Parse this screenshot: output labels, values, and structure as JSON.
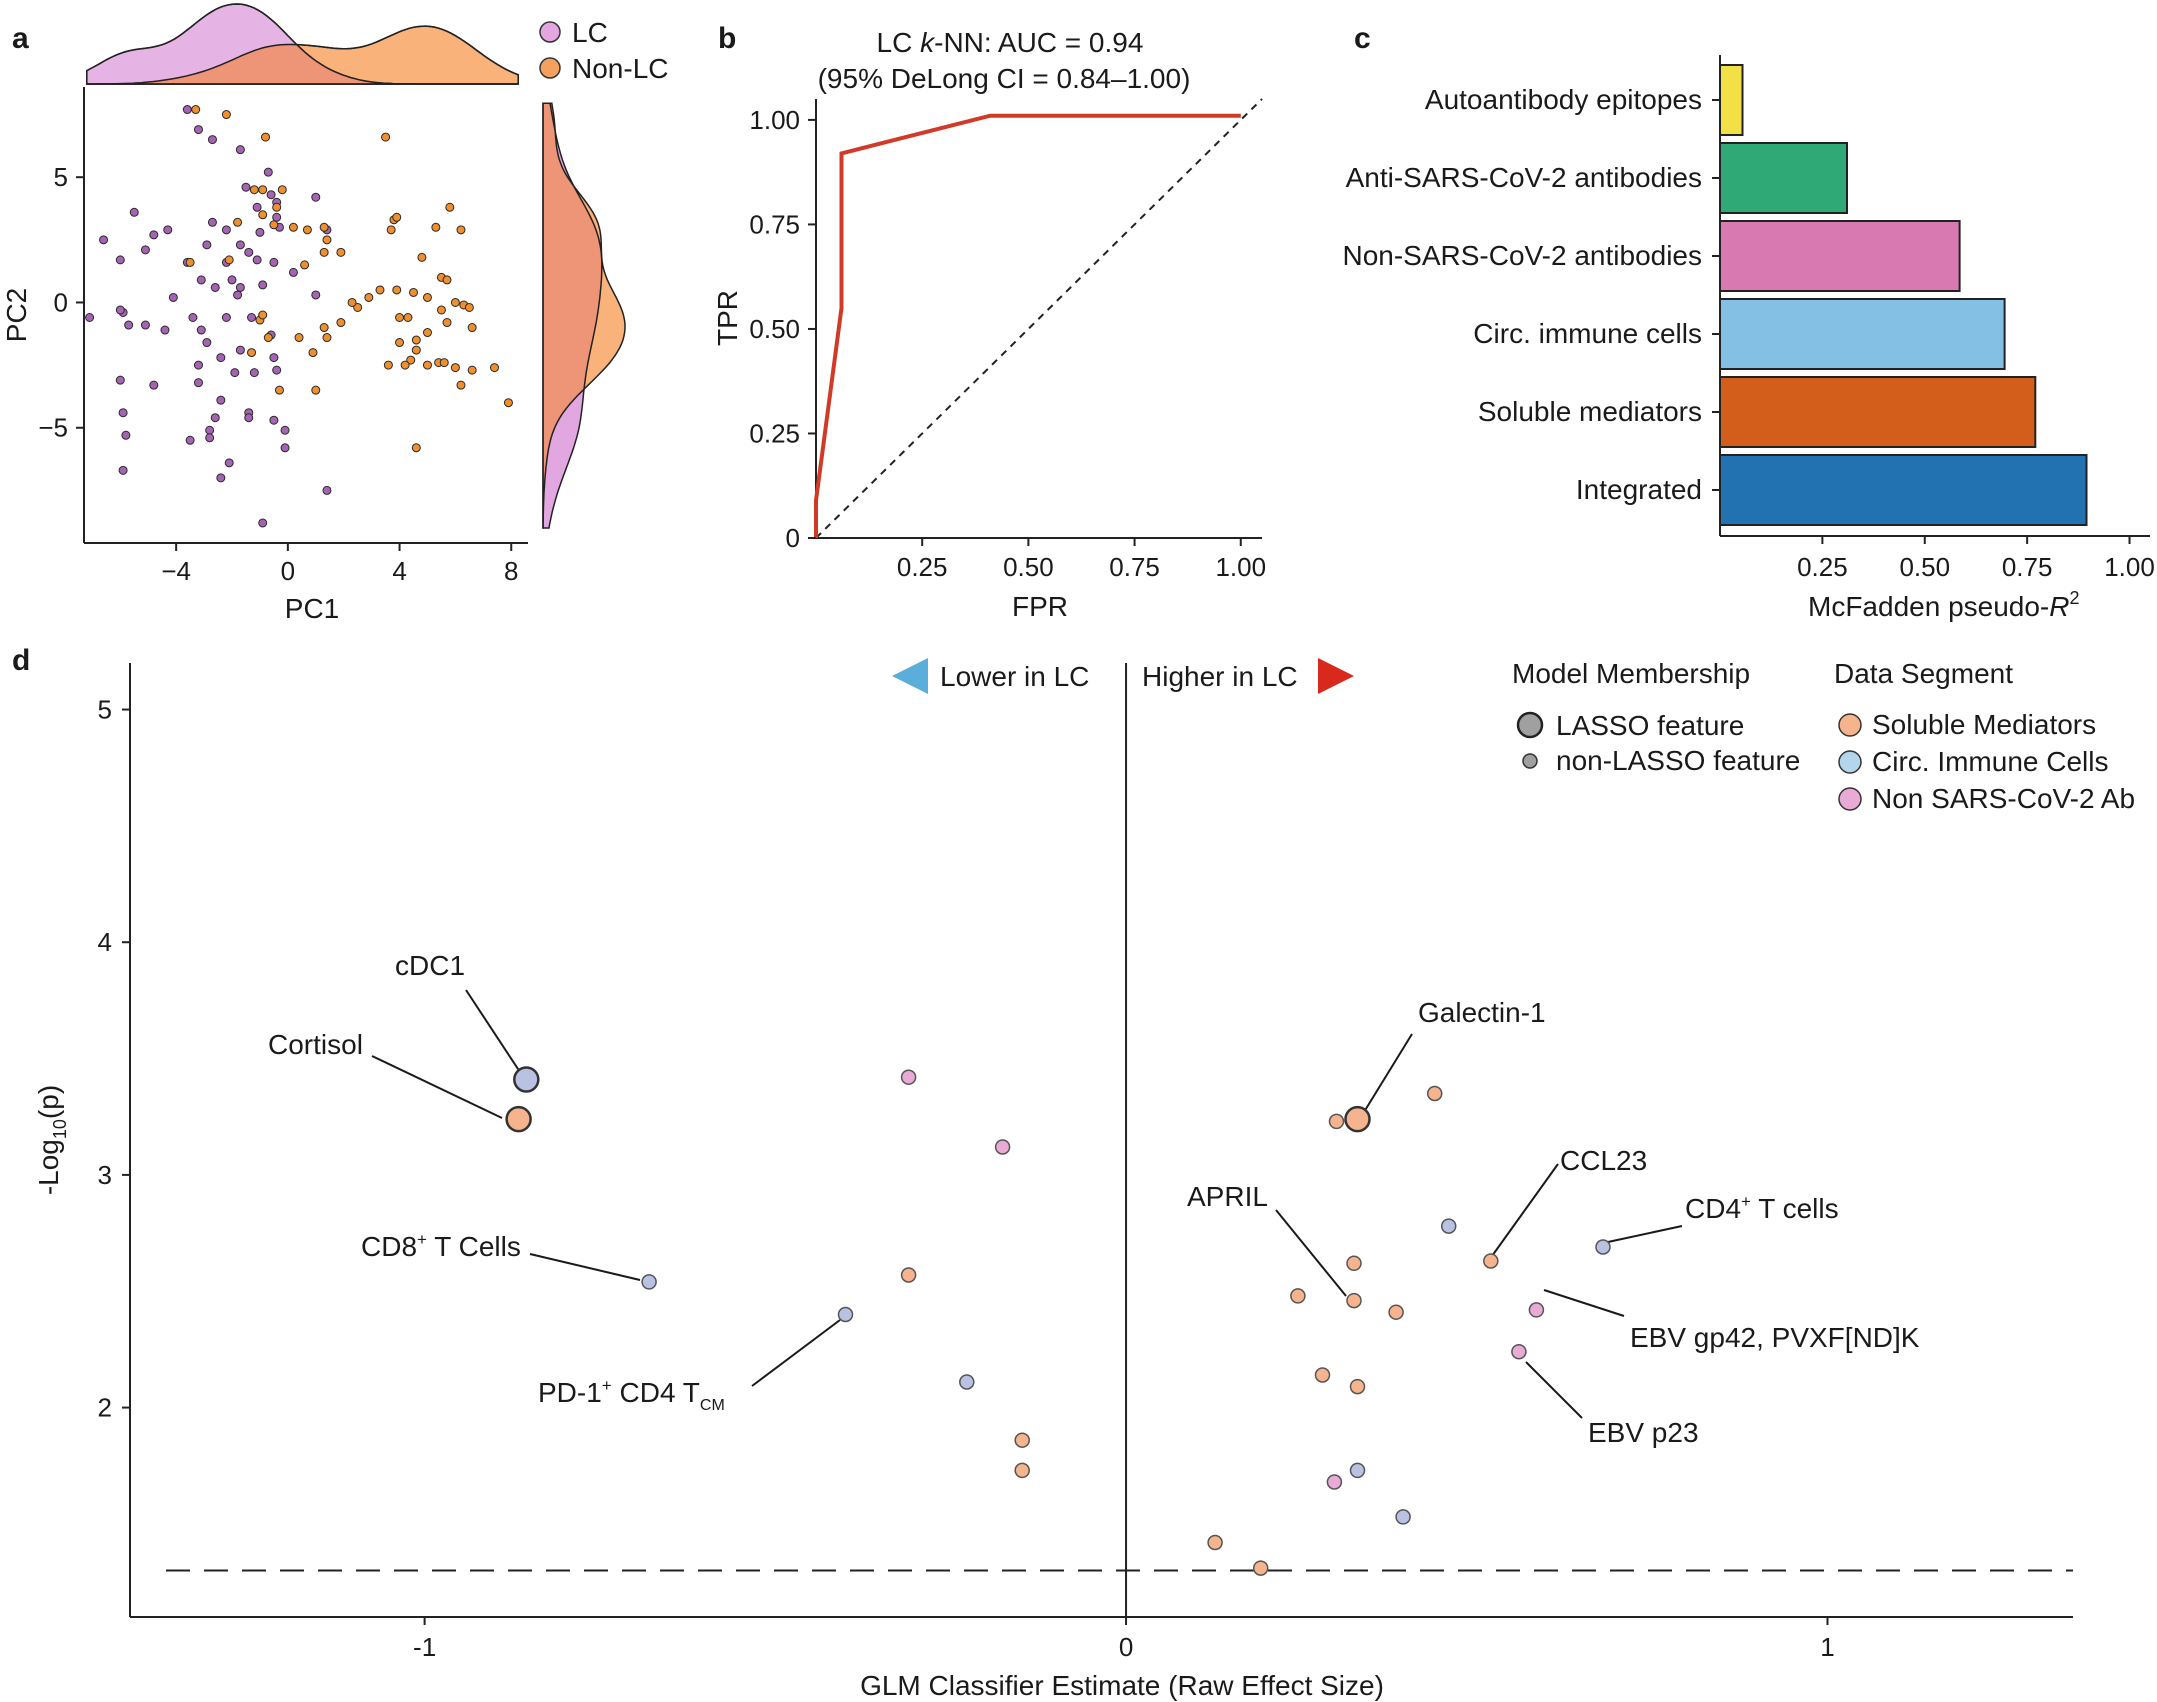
{
  "colors": {
    "lc": "#e2a6e0",
    "non_lc": "#f9b27a",
    "overlap": "#ee9477",
    "lc_point": "#a564b3",
    "non_lc_point": "#ef8f2e",
    "roc": "#d23a28",
    "soluble": "#f5b48e",
    "circ": "#b9c2e3",
    "nonsars": "#e9abd6",
    "bar_auto": "#f2e046",
    "bar_anti": "#2faa77",
    "bar_non": "#d979b1",
    "bar_circ": "#83c0e4",
    "bar_sol": "#d35d1a",
    "bar_int": "#2271b1",
    "arrow_lower": "#5aaed9",
    "arrow_higher": "#d9281c"
  },
  "panel_a": {
    "letter": "a",
    "legend": [
      {
        "label": "LC",
        "key": "lc"
      },
      {
        "label": "Non-LC",
        "key": "non_lc"
      }
    ]
  },
  "panel_b": {
    "letter": "b",
    "title_prefix": "LC ",
    "title_k": "k",
    "title_suffix": "-NN: AUC = 0.94",
    "subtitle": "(95% DeLong CI  = 0.84–1.00)"
  },
  "panel_c": {
    "letter": "c"
  },
  "panel_d": {
    "letter": "d",
    "lower_label": "Lower in LC",
    "higher_label": "Higher in LC",
    "membership_title": "Model Membership",
    "membership": [
      "LASSO feature",
      "non-LASSO feature"
    ],
    "segment_title": "Data Segment",
    "segments": [
      {
        "label": "Soluble Mediators",
        "key": "soluble"
      },
      {
        "label": "Circ. Immune Cells",
        "key": "circ"
      },
      {
        "label": "Non SARS-CoV-2 Ab",
        "key": "nonsars"
      }
    ],
    "ann_pd1_main": "PD-1",
    "ann_pd1_sup": "+",
    "ann_pd1_mid": " CD4 T",
    "ann_pd1_sub": "CM",
    "ann_cd8_main": "CD8",
    "ann_cd8_sup": "+",
    "ann_cd8_rest": " T Cells",
    "ann_cd4_main": "CD4",
    "ann_cd4_sup": "+",
    "ann_cd4_rest": " T cells"
  },
  "chart_data": [
    {
      "type": "scatter",
      "panel": "a",
      "xlabel": "PC1",
      "ylabel": "PC2",
      "xlim": [
        -7.3,
        8.6
      ],
      "ylim": [
        -9.6,
        8.6
      ],
      "xticks": [
        -4,
        0,
        4,
        8
      ],
      "yticks": [
        -5,
        0,
        5
      ],
      "series": [
        {
          "name": "LC",
          "points": [
            [
              -3.6,
              7.7
            ],
            [
              -3.2,
              6.9
            ],
            [
              -1.7,
              6.1
            ],
            [
              -2.7,
              6.5
            ],
            [
              -0.7,
              5.2
            ],
            [
              -0.6,
              4.3
            ],
            [
              -1.5,
              4.6
            ],
            [
              -1.1,
              3.8
            ],
            [
              -0.4,
              4.0
            ],
            [
              -2.7,
              3.2
            ],
            [
              -2.2,
              2.9
            ],
            [
              -1.0,
              2.8
            ],
            [
              -1.7,
              2.3
            ],
            [
              -0.4,
              3.4
            ],
            [
              -0.3,
              3.0
            ],
            [
              -1.4,
              2.0
            ],
            [
              -2.9,
              2.3
            ],
            [
              -4.3,
              2.9
            ],
            [
              -4.8,
              2.7
            ],
            [
              -5.1,
              2.1
            ],
            [
              -5.5,
              3.6
            ],
            [
              -6.6,
              2.5
            ],
            [
              -2.2,
              1.6
            ],
            [
              -1.1,
              1.7
            ],
            [
              -0.5,
              1.6
            ],
            [
              -3.6,
              1.6
            ],
            [
              -6.0,
              1.7
            ],
            [
              -3.1,
              0.9
            ],
            [
              -2.6,
              0.6
            ],
            [
              -1.8,
              0.3
            ],
            [
              -1.7,
              0.6
            ],
            [
              -2.0,
              0.9
            ],
            [
              -0.9,
              0.7
            ],
            [
              -4.1,
              0.2
            ],
            [
              -5.9,
              -0.4
            ],
            [
              -6.0,
              -0.3
            ],
            [
              -7.1,
              -0.6
            ],
            [
              -5.7,
              -0.9
            ],
            [
              -5.1,
              -0.9
            ],
            [
              -4.4,
              -1.1
            ],
            [
              -3.4,
              -0.6
            ],
            [
              -3.1,
              -1.1
            ],
            [
              -2.2,
              -0.6
            ],
            [
              -1.3,
              -0.6
            ],
            [
              -2.9,
              -1.6
            ],
            [
              -2.4,
              -2.2
            ],
            [
              -1.7,
              -1.9
            ],
            [
              -0.6,
              -1.3
            ],
            [
              -0.5,
              -2.2
            ],
            [
              -3.2,
              -2.5
            ],
            [
              -1.9,
              -2.8
            ],
            [
              -1.2,
              -2.8
            ],
            [
              -0.4,
              -2.7
            ],
            [
              -4.8,
              -3.3
            ],
            [
              -6.0,
              -3.1
            ],
            [
              -3.2,
              -3.2
            ],
            [
              -5.9,
              -4.4
            ],
            [
              -2.4,
              -3.9
            ],
            [
              -1.4,
              -4.4
            ],
            [
              -2.6,
              -4.6
            ],
            [
              -1.4,
              -4.6
            ],
            [
              -0.5,
              -4.7
            ],
            [
              -2.8,
              -5.1
            ],
            [
              -2.8,
              -5.4
            ],
            [
              -0.1,
              -5.1
            ],
            [
              -3.5,
              -5.5
            ],
            [
              -5.8,
              -5.3
            ],
            [
              -2.1,
              -6.4
            ],
            [
              -0.1,
              -5.8
            ],
            [
              -5.9,
              -6.7
            ],
            [
              -2.4,
              -7.0
            ],
            [
              1.4,
              -7.5
            ],
            [
              -0.9,
              -8.8
            ],
            [
              1.0,
              0.3
            ],
            [
              0.2,
              1.2
            ],
            [
              1.4,
              2.9
            ],
            [
              1.0,
              4.2
            ]
          ]
        },
        {
          "name": "Non-LC",
          "points": [
            [
              -3.3,
              7.7
            ],
            [
              -2.2,
              7.5
            ],
            [
              -0.8,
              6.6
            ],
            [
              3.5,
              6.6
            ],
            [
              -1.2,
              4.5
            ],
            [
              -0.9,
              4.5
            ],
            [
              -0.2,
              4.5
            ],
            [
              -0.4,
              3.8
            ],
            [
              -0.5,
              3.1
            ],
            [
              0.2,
              3.0
            ],
            [
              0.7,
              2.9
            ],
            [
              1.3,
              3.0
            ],
            [
              1.4,
              2.5
            ],
            [
              1.9,
              2.0
            ],
            [
              -1.8,
              3.2
            ],
            [
              -0.9,
              3.5
            ],
            [
              -3.5,
              1.6
            ],
            [
              -2.1,
              1.7
            ],
            [
              0.6,
              1.5
            ],
            [
              1.3,
              2.0
            ],
            [
              3.8,
              3.3
            ],
            [
              3.9,
              3.4
            ],
            [
              3.7,
              2.9
            ],
            [
              5.3,
              3.0
            ],
            [
              5.8,
              3.8
            ],
            [
              6.2,
              2.9
            ],
            [
              4.8,
              1.8
            ],
            [
              5.5,
              1.0
            ],
            [
              5.7,
              0.9
            ],
            [
              5.0,
              0.2
            ],
            [
              6.0,
              0.0
            ],
            [
              6.3,
              -0.1
            ],
            [
              6.5,
              -0.2
            ],
            [
              5.5,
              -0.3
            ],
            [
              4.5,
              0.4
            ],
            [
              3.9,
              0.5
            ],
            [
              3.3,
              0.5
            ],
            [
              2.9,
              0.2
            ],
            [
              2.5,
              -0.2
            ],
            [
              2.3,
              0.0
            ],
            [
              4.0,
              -0.6
            ],
            [
              4.3,
              -0.6
            ],
            [
              5.7,
              -0.8
            ],
            [
              6.6,
              -1.0
            ],
            [
              5.0,
              -1.2
            ],
            [
              4.6,
              -1.5
            ],
            [
              4.0,
              -1.6
            ],
            [
              4.6,
              -1.9
            ],
            [
              4.4,
              -2.3
            ],
            [
              3.6,
              -2.5
            ],
            [
              4.2,
              -2.5
            ],
            [
              5.0,
              -2.5
            ],
            [
              5.4,
              -2.4
            ],
            [
              5.6,
              -2.4
            ],
            [
              6.0,
              -2.6
            ],
            [
              6.6,
              -2.7
            ],
            [
              7.4,
              -2.6
            ],
            [
              6.2,
              -3.3
            ],
            [
              7.9,
              -4.0
            ],
            [
              4.6,
              -5.8
            ],
            [
              1.3,
              -1.0
            ],
            [
              1.9,
              -0.8
            ],
            [
              1.4,
              -1.4
            ],
            [
              0.9,
              -2.0
            ],
            [
              -1.0,
              -0.7
            ],
            [
              -0.7,
              -1.4
            ],
            [
              -1.3,
              -2.0
            ],
            [
              0.4,
              -1.4
            ],
            [
              1.0,
              -3.5
            ],
            [
              -0.3,
              -3.5
            ],
            [
              -0.9,
              -0.5
            ]
          ]
        }
      ],
      "marginal": "density, top (PC1) and right (PC2)"
    },
    {
      "type": "line",
      "panel": "b",
      "title": "LC k-NN: AUC = 0.94 (95% DeLong CI = 0.84–1.00)",
      "xlabel": "FPR",
      "ylabel": "TPR",
      "xlim": [
        0,
        1.05
      ],
      "ylim": [
        0,
        1.05
      ],
      "xticks": [
        "0.25",
        "0.50",
        "0.75",
        "1.00"
      ],
      "yticks": [
        "0",
        "0.25",
        "0.50",
        "0.75",
        "1.00"
      ],
      "roc": [
        [
          0,
          0
        ],
        [
          0,
          0.09
        ],
        [
          0.06,
          0.55
        ],
        [
          0.06,
          0.92
        ],
        [
          0.41,
          1.01
        ],
        [
          1.0,
          1.01
        ]
      ],
      "diagonal": [
        [
          0,
          0
        ],
        [
          1.05,
          1.05
        ]
      ]
    },
    {
      "type": "bar",
      "panel": "c",
      "orientation": "horizontal",
      "xlabel_prefix": "McFadden pseudo-",
      "xlabel_var": "R",
      "xlabel_sup": "2",
      "xlim": [
        0,
        1.05
      ],
      "xticks": [
        "0.25",
        "0.50",
        "0.75",
        "1.00"
      ],
      "categories": [
        "Autoantibody epitopes",
        "Anti-SARS-CoV-2 antibodies",
        "Non-SARS-CoV-2 antibodies",
        "Circ. immune cells",
        "Soluble mediators",
        "Integrated"
      ],
      "values": [
        0.055,
        0.31,
        0.585,
        0.695,
        0.77,
        0.895
      ],
      "color_keys": [
        "bar_auto",
        "bar_anti",
        "bar_non",
        "bar_circ",
        "bar_sol",
        "bar_int"
      ]
    },
    {
      "type": "scatter",
      "panel": "d",
      "xlabel": "GLM Classifier Estimate (Raw Effect Size)",
      "ylabel_prefix": "-Log",
      "ylabel_sub": "10",
      "ylabel_suffix": "(p)",
      "xlim": [
        -1.42,
        1.35
      ],
      "ylim": [
        1.1,
        5.2
      ],
      "xticks": [
        "-1",
        "0",
        "1"
      ],
      "yticks": [
        "2",
        "3",
        "4",
        "5"
      ],
      "threshold": 1.3,
      "points": [
        {
          "x": -0.855,
          "y": 3.41,
          "seg": "circ",
          "lasso": true,
          "label": "cDC1"
        },
        {
          "x": -0.866,
          "y": 3.24,
          "seg": "soluble",
          "lasso": true,
          "label": "Cortisol"
        },
        {
          "x": -0.68,
          "y": 2.54,
          "seg": "circ",
          "lasso": false,
          "label": "CD8+ T Cells"
        },
        {
          "x": -0.4,
          "y": 2.4,
          "seg": "circ",
          "lasso": false,
          "label": "PD-1+ CD4 TCM"
        },
        {
          "x": -0.31,
          "y": 3.42,
          "seg": "nonsars",
          "lasso": false
        },
        {
          "x": -0.176,
          "y": 3.12,
          "seg": "nonsars",
          "lasso": false
        },
        {
          "x": -0.31,
          "y": 2.57,
          "seg": "soluble",
          "lasso": false
        },
        {
          "x": -0.227,
          "y": 2.11,
          "seg": "circ",
          "lasso": false
        },
        {
          "x": -0.148,
          "y": 1.86,
          "seg": "soluble",
          "lasso": false
        },
        {
          "x": -0.148,
          "y": 1.73,
          "seg": "soluble",
          "lasso": false
        },
        {
          "x": 0.33,
          "y": 3.24,
          "seg": "soluble",
          "lasso": true,
          "label": "Galectin-1"
        },
        {
          "x": 0.3,
          "y": 3.23,
          "seg": "soluble",
          "lasso": false
        },
        {
          "x": 0.44,
          "y": 3.35,
          "seg": "soluble",
          "lasso": false
        },
        {
          "x": 0.46,
          "y": 2.78,
          "seg": "circ",
          "lasso": false
        },
        {
          "x": 0.52,
          "y": 2.63,
          "seg": "soluble",
          "lasso": false,
          "label": "CCL23"
        },
        {
          "x": 0.68,
          "y": 2.69,
          "seg": "circ",
          "lasso": false,
          "label": "CD4+ T cells"
        },
        {
          "x": 0.325,
          "y": 2.62,
          "seg": "soluble",
          "lasso": false
        },
        {
          "x": 0.245,
          "y": 2.48,
          "seg": "soluble",
          "lasso": false
        },
        {
          "x": 0.325,
          "y": 2.46,
          "seg": "soluble",
          "lasso": false,
          "label": "APRIL"
        },
        {
          "x": 0.385,
          "y": 2.41,
          "seg": "soluble",
          "lasso": false
        },
        {
          "x": 0.585,
          "y": 2.42,
          "seg": "nonsars",
          "lasso": false,
          "label": "EBV gp42, PVXF[ND]K"
        },
        {
          "x": 0.56,
          "y": 2.24,
          "seg": "nonsars",
          "lasso": false,
          "label": "EBV p23"
        },
        {
          "x": 0.28,
          "y": 2.14,
          "seg": "soluble",
          "lasso": false
        },
        {
          "x": 0.33,
          "y": 2.09,
          "seg": "soluble",
          "lasso": false
        },
        {
          "x": 0.33,
          "y": 1.73,
          "seg": "circ",
          "lasso": false
        },
        {
          "x": 0.297,
          "y": 1.68,
          "seg": "nonsars",
          "lasso": false
        },
        {
          "x": 0.395,
          "y": 1.53,
          "seg": "circ",
          "lasso": false
        },
        {
          "x": 0.127,
          "y": 1.42,
          "seg": "soluble",
          "lasso": false
        },
        {
          "x": 0.192,
          "y": 1.31,
          "seg": "soluble",
          "lasso": false
        }
      ]
    }
  ]
}
